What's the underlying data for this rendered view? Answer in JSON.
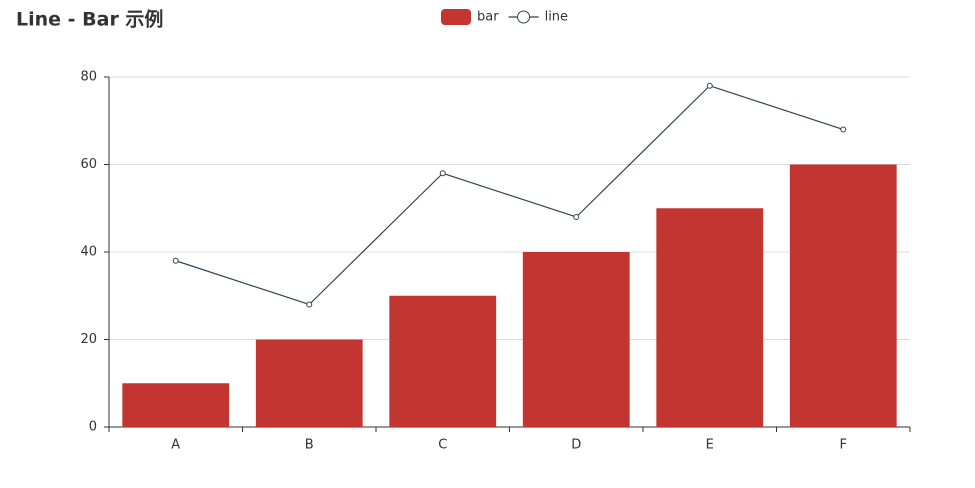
{
  "chart_data": {
    "type": "bar",
    "title": "Line - Bar 示例",
    "categories": [
      "A",
      "B",
      "C",
      "D",
      "E",
      "F"
    ],
    "series": [
      {
        "name": "bar",
        "type": "bar",
        "color": "#c23531",
        "values": [
          10,
          20,
          30,
          40,
          50,
          60
        ]
      },
      {
        "name": "line",
        "type": "line",
        "color": "#2f4554",
        "values": [
          38,
          28,
          58,
          48,
          78,
          68
        ]
      }
    ],
    "ylim": [
      0,
      80
    ],
    "yticks": [
      0,
      20,
      40,
      60,
      80
    ],
    "grid": true,
    "legend": "top"
  }
}
